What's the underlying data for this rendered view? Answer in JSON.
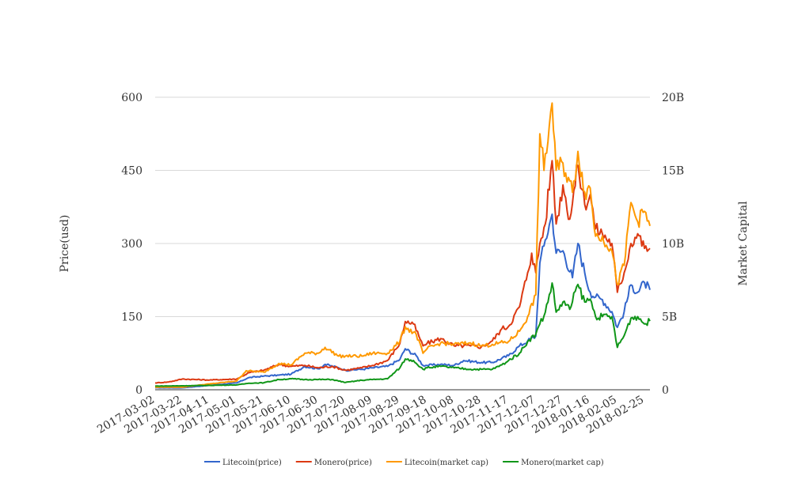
{
  "chart_data": {
    "type": "line",
    "title": "",
    "xlabel": "",
    "ylabel": "Price(usd)",
    "y2label": "Market Capital",
    "ylim": [
      0,
      600
    ],
    "y2lim": [
      0,
      20000000000
    ],
    "yticks": [
      0,
      150,
      300,
      450,
      600
    ],
    "y2ticks": [
      "0",
      "5B",
      "10B",
      "15B",
      "20B"
    ],
    "x_range": [
      "2017-03-02",
      "2018-03-01"
    ],
    "xtick_labels": [
      "2017-03-02",
      "2017-03-22",
      "2017-04-11",
      "2017-05-01",
      "2017-05-21",
      "2017-06-10",
      "2017-06-30",
      "2017-07-20",
      "2017-08-09",
      "2017-08-29",
      "2017-09-18",
      "2017-10-08",
      "2017-10-28",
      "2017-11-17",
      "2017-12-07",
      "2017-12-27",
      "2018-01-16",
      "2018-02-05",
      "2018-02-25"
    ],
    "grid": true,
    "legend_position": "bottom",
    "series": [
      {
        "name": "Litecoin(price)",
        "axis": "left",
        "color": "#3366cc",
        "points": [
          [
            "2017-03-02",
            4
          ],
          [
            "2017-03-22",
            4
          ],
          [
            "2017-04-11",
            9
          ],
          [
            "2017-05-01",
            14
          ],
          [
            "2017-05-10",
            25
          ],
          [
            "2017-05-21",
            28
          ],
          [
            "2017-06-01",
            30
          ],
          [
            "2017-06-10",
            32
          ],
          [
            "2017-06-20",
            48
          ],
          [
            "2017-06-30",
            43
          ],
          [
            "2017-07-05",
            52
          ],
          [
            "2017-07-15",
            45
          ],
          [
            "2017-07-20",
            40
          ],
          [
            "2017-08-01",
            42
          ],
          [
            "2017-08-09",
            45
          ],
          [
            "2017-08-20",
            48
          ],
          [
            "2017-08-29",
            62
          ],
          [
            "2017-09-02",
            84
          ],
          [
            "2017-09-10",
            70
          ],
          [
            "2017-09-15",
            50
          ],
          [
            "2017-09-18",
            50
          ],
          [
            "2017-09-28",
            52
          ],
          [
            "2017-10-08",
            50
          ],
          [
            "2017-10-15",
            60
          ],
          [
            "2017-10-28",
            56
          ],
          [
            "2017-11-05",
            56
          ],
          [
            "2017-11-17",
            70
          ],
          [
            "2017-11-25",
            90
          ],
          [
            "2017-12-01",
            100
          ],
          [
            "2017-12-07",
            110
          ],
          [
            "2017-12-10",
            260
          ],
          [
            "2017-12-13",
            295
          ],
          [
            "2017-12-19",
            360
          ],
          [
            "2017-12-22",
            280
          ],
          [
            "2017-12-27",
            285
          ],
          [
            "2018-01-03",
            230
          ],
          [
            "2018-01-07",
            300
          ],
          [
            "2018-01-12",
            240
          ],
          [
            "2018-01-16",
            200
          ],
          [
            "2018-01-20",
            190
          ],
          [
            "2018-01-25",
            185
          ],
          [
            "2018-02-01",
            160
          ],
          [
            "2018-02-05",
            128
          ],
          [
            "2018-02-10",
            160
          ],
          [
            "2018-02-15",
            215
          ],
          [
            "2018-02-20",
            200
          ],
          [
            "2018-02-25",
            220
          ],
          [
            "2018-03-01",
            205
          ]
        ]
      },
      {
        "name": "Monero(price)",
        "axis": "left",
        "color": "#dc3912",
        "points": [
          [
            "2017-03-02",
            14
          ],
          [
            "2017-03-12",
            16
          ],
          [
            "2017-03-22",
            22
          ],
          [
            "2017-04-11",
            20
          ],
          [
            "2017-05-01",
            22
          ],
          [
            "2017-05-10",
            35
          ],
          [
            "2017-05-21",
            40
          ],
          [
            "2017-06-01",
            52
          ],
          [
            "2017-06-10",
            48
          ],
          [
            "2017-06-20",
            50
          ],
          [
            "2017-06-30",
            45
          ],
          [
            "2017-07-10",
            48
          ],
          [
            "2017-07-20",
            40
          ],
          [
            "2017-08-01",
            45
          ],
          [
            "2017-08-09",
            50
          ],
          [
            "2017-08-20",
            60
          ],
          [
            "2017-08-29",
            95
          ],
          [
            "2017-09-02",
            140
          ],
          [
            "2017-09-08",
            135
          ],
          [
            "2017-09-12",
            110
          ],
          [
            "2017-09-15",
            90
          ],
          [
            "2017-09-18",
            95
          ],
          [
            "2017-09-28",
            105
          ],
          [
            "2017-10-08",
            90
          ],
          [
            "2017-10-20",
            90
          ],
          [
            "2017-10-28",
            88
          ],
          [
            "2017-11-05",
            100
          ],
          [
            "2017-11-12",
            125
          ],
          [
            "2017-11-17",
            130
          ],
          [
            "2017-11-25",
            170
          ],
          [
            "2017-12-01",
            240
          ],
          [
            "2017-12-04",
            280
          ],
          [
            "2017-12-07",
            240
          ],
          [
            "2017-12-10",
            300
          ],
          [
            "2017-12-14",
            340
          ],
          [
            "2017-12-18",
            450
          ],
          [
            "2017-12-19",
            470
          ],
          [
            "2017-12-22",
            340
          ],
          [
            "2017-12-27",
            420
          ],
          [
            "2018-01-01",
            350
          ],
          [
            "2018-01-07",
            460
          ],
          [
            "2018-01-12",
            380
          ],
          [
            "2018-01-16",
            400
          ],
          [
            "2018-01-20",
            330
          ],
          [
            "2018-01-25",
            320
          ],
          [
            "2018-02-01",
            300
          ],
          [
            "2018-02-05",
            200
          ],
          [
            "2018-02-10",
            240
          ],
          [
            "2018-02-15",
            300
          ],
          [
            "2018-02-20",
            320
          ],
          [
            "2018-02-25",
            290
          ],
          [
            "2018-03-01",
            290
          ]
        ]
      },
      {
        "name": "Litecoin(market cap)",
        "axis": "right",
        "color": "#ff9900",
        "points": [
          [
            "2017-03-02",
            180000000
          ],
          [
            "2017-03-22",
            180000000
          ],
          [
            "2017-04-11",
            400000000
          ],
          [
            "2017-05-01",
            600000000
          ],
          [
            "2017-05-08",
            1300000000
          ],
          [
            "2017-05-21",
            1200000000
          ],
          [
            "2017-06-01",
            1800000000
          ],
          [
            "2017-06-10",
            1700000000
          ],
          [
            "2017-06-20",
            2500000000
          ],
          [
            "2017-06-30",
            2500000000
          ],
          [
            "2017-07-05",
            2900000000
          ],
          [
            "2017-07-15",
            2300000000
          ],
          [
            "2017-07-20",
            2300000000
          ],
          [
            "2017-08-01",
            2300000000
          ],
          [
            "2017-08-09",
            2500000000
          ],
          [
            "2017-08-20",
            2500000000
          ],
          [
            "2017-08-29",
            3300000000
          ],
          [
            "2017-09-02",
            4300000000
          ],
          [
            "2017-09-10",
            3800000000
          ],
          [
            "2017-09-15",
            2500000000
          ],
          [
            "2017-09-18",
            2800000000
          ],
          [
            "2017-09-28",
            3200000000
          ],
          [
            "2017-10-08",
            3100000000
          ],
          [
            "2017-10-20",
            3200000000
          ],
          [
            "2017-10-28",
            3000000000
          ],
          [
            "2017-11-05",
            3100000000
          ],
          [
            "2017-11-17",
            3300000000
          ],
          [
            "2017-11-25",
            4000000000
          ],
          [
            "2017-12-01",
            5000000000
          ],
          [
            "2017-12-07",
            6500000000
          ],
          [
            "2017-12-10",
            17500000000
          ],
          [
            "2017-12-13",
            15000000000
          ],
          [
            "2017-12-19",
            19600000000
          ],
          [
            "2017-12-22",
            15000000000
          ],
          [
            "2017-12-27",
            15500000000
          ],
          [
            "2018-01-03",
            13500000000
          ],
          [
            "2018-01-07",
            16300000000
          ],
          [
            "2018-01-12",
            13500000000
          ],
          [
            "2018-01-16",
            13800000000
          ],
          [
            "2018-01-20",
            10500000000
          ],
          [
            "2018-01-25",
            10500000000
          ],
          [
            "2018-02-01",
            9500000000
          ],
          [
            "2018-02-05",
            7200000000
          ],
          [
            "2018-02-10",
            8500000000
          ],
          [
            "2018-02-15",
            12800000000
          ],
          [
            "2018-02-20",
            11500000000
          ],
          [
            "2018-02-25",
            12200000000
          ],
          [
            "2018-03-01",
            11200000000
          ]
        ]
      },
      {
        "name": "Monero(market cap)",
        "axis": "right",
        "color": "#109618",
        "points": [
          [
            "2017-03-02",
            250000000
          ],
          [
            "2017-03-22",
            270000000
          ],
          [
            "2017-04-11",
            300000000
          ],
          [
            "2017-05-01",
            330000000
          ],
          [
            "2017-05-10",
            450000000
          ],
          [
            "2017-05-21",
            480000000
          ],
          [
            "2017-06-01",
            700000000
          ],
          [
            "2017-06-10",
            750000000
          ],
          [
            "2017-06-20",
            700000000
          ],
          [
            "2017-06-30",
            700000000
          ],
          [
            "2017-07-10",
            700000000
          ],
          [
            "2017-07-20",
            500000000
          ],
          [
            "2017-08-01",
            650000000
          ],
          [
            "2017-08-09",
            700000000
          ],
          [
            "2017-08-20",
            750000000
          ],
          [
            "2017-08-29",
            1500000000
          ],
          [
            "2017-09-02",
            2100000000
          ],
          [
            "2017-09-08",
            2000000000
          ],
          [
            "2017-09-15",
            1400000000
          ],
          [
            "2017-09-18",
            1500000000
          ],
          [
            "2017-09-28",
            1600000000
          ],
          [
            "2017-10-08",
            1500000000
          ],
          [
            "2017-10-20",
            1400000000
          ],
          [
            "2017-10-28",
            1400000000
          ],
          [
            "2017-11-05",
            1400000000
          ],
          [
            "2017-11-12",
            1700000000
          ],
          [
            "2017-11-17",
            2000000000
          ],
          [
            "2017-11-25",
            2500000000
          ],
          [
            "2017-12-01",
            3300000000
          ],
          [
            "2017-12-07",
            3800000000
          ],
          [
            "2017-12-10",
            4500000000
          ],
          [
            "2017-12-14",
            5300000000
          ],
          [
            "2017-12-19",
            7300000000
          ],
          [
            "2017-12-22",
            5300000000
          ],
          [
            "2017-12-27",
            6000000000
          ],
          [
            "2018-01-01",
            5500000000
          ],
          [
            "2018-01-07",
            7200000000
          ],
          [
            "2018-01-12",
            6000000000
          ],
          [
            "2018-01-16",
            6200000000
          ],
          [
            "2018-01-20",
            5000000000
          ],
          [
            "2018-01-25",
            5000000000
          ],
          [
            "2018-02-01",
            5000000000
          ],
          [
            "2018-02-05",
            2900000000
          ],
          [
            "2018-02-10",
            3700000000
          ],
          [
            "2018-02-15",
            4900000000
          ],
          [
            "2018-02-20",
            5000000000
          ],
          [
            "2018-02-25",
            4500000000
          ],
          [
            "2018-03-01",
            4700000000
          ]
        ]
      }
    ]
  }
}
